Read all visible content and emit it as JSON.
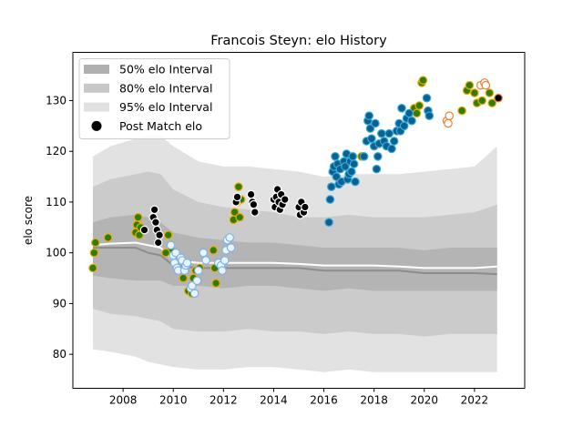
{
  "chart_data": {
    "type": "scatter",
    "title": "Francois Steyn: elo History",
    "xlabel": "",
    "ylabel": "elo score",
    "xlim": [
      2006.0,
      2024.0
    ],
    "ylim": [
      73.3,
      139.5
    ],
    "x_ticks": [
      2008,
      2010,
      2012,
      2014,
      2016,
      2018,
      2020,
      2022
    ],
    "y_ticks": [
      80,
      90,
      100,
      110,
      120,
      130
    ],
    "grid": false,
    "legend_position": "top-left",
    "legend": [
      {
        "label": "50% elo Interval",
        "kind": "patch",
        "color": "#b0b0b0"
      },
      {
        "label": "80% elo Interval",
        "kind": "patch",
        "color": "#c8c8c8"
      },
      {
        "label": "95% elo Interval",
        "kind": "patch",
        "color": "#e1e1e1"
      },
      {
        "label": "Post Match elo",
        "kind": "marker",
        "color": "#000000"
      }
    ],
    "colors": {
      "band95": "#e2e2e2",
      "band80": "#cbcbcb",
      "band50": "#b4b4b4",
      "mean_line": "#ffffff",
      "median_line": "#8c8c8c"
    },
    "bands": {
      "x": [
        2006.8,
        2007.5,
        2008.5,
        2009.0,
        2009.5,
        2010.0,
        2011.0,
        2012.0,
        2013.0,
        2014.0,
        2015.0,
        2016.0,
        2017.0,
        2018.0,
        2019.0,
        2020.0,
        2021.0,
        2022.0,
        2022.9
      ],
      "p95_hi": [
        119.0,
        121.0,
        122.5,
        123.0,
        123.0,
        121.0,
        118.0,
        117.0,
        117.0,
        116.5,
        116.0,
        115.0,
        115.5,
        115.5,
        115.5,
        116.0,
        116.5,
        117.0,
        121.0
      ],
      "p80_hi": [
        113.0,
        114.5,
        115.5,
        116.0,
        115.5,
        112.5,
        110.0,
        109.0,
        108.5,
        108.0,
        107.0,
        107.0,
        107.5,
        107.0,
        107.0,
        107.0,
        107.5,
        108.0,
        109.5
      ],
      "p50_hi": [
        106.0,
        107.0,
        107.5,
        107.0,
        106.0,
        104.0,
        103.0,
        102.5,
        102.0,
        102.0,
        101.5,
        101.0,
        101.0,
        101.0,
        101.0,
        100.5,
        101.0,
        101.0,
        101.0
      ],
      "p50_lo": [
        95.5,
        95.0,
        94.5,
        94.5,
        94.5,
        93.5,
        93.5,
        93.0,
        93.5,
        93.5,
        93.0,
        92.5,
        93.0,
        92.5,
        92.5,
        92.5,
        92.5,
        92.5,
        92.5
      ],
      "p80_lo": [
        89.0,
        88.0,
        87.5,
        87.0,
        86.5,
        85.0,
        84.5,
        84.5,
        85.0,
        84.5,
        84.5,
        84.0,
        84.5,
        84.0,
        84.0,
        83.5,
        84.0,
        84.0,
        84.0
      ],
      "p95_lo": [
        81.0,
        80.5,
        79.5,
        78.5,
        78.0,
        77.5,
        77.0,
        77.0,
        77.5,
        77.5,
        77.0,
        76.5,
        77.0,
        76.5,
        76.5,
        76.5,
        76.5,
        76.5,
        76.5
      ]
    },
    "mean_line": {
      "x": [
        2006.8,
        2007.5,
        2008.5,
        2009.0,
        2009.5,
        2010.0,
        2011.0,
        2012.0,
        2013.0,
        2014.0,
        2015.0,
        2016.0,
        2017.0,
        2018.0,
        2019.0,
        2020.0,
        2021.0,
        2022.0,
        2022.9
      ],
      "y": [
        101.5,
        101.8,
        102.0,
        101.5,
        101.0,
        98.5,
        98.0,
        98.0,
        98.0,
        98.0,
        97.8,
        97.5,
        97.5,
        97.5,
        97.3,
        97.0,
        97.0,
        97.0,
        97.3
      ]
    },
    "median_line": {
      "x": [
        2006.8,
        2007.5,
        2008.5,
        2009.0,
        2009.5,
        2010.0,
        2011.0,
        2012.0,
        2013.0,
        2014.0,
        2015.0,
        2016.0,
        2017.0,
        2018.0,
        2019.0,
        2020.0,
        2021.0,
        2022.0,
        2022.9
      ],
      "y": [
        101.0,
        101.0,
        101.0,
        100.0,
        99.5,
        97.5,
        97.0,
        97.0,
        97.0,
        97.0,
        97.0,
        96.5,
        96.5,
        96.5,
        96.5,
        96.0,
        96.0,
        96.0,
        95.8
      ]
    },
    "series": [
      {
        "face": "#2e7d0a",
        "edge": "#f2a900",
        "points": [
          [
            2006.8,
            97.0
          ],
          [
            2006.85,
            100.0
          ],
          [
            2006.9,
            102.0
          ],
          [
            2007.4,
            103.0
          ],
          [
            2008.5,
            104.0
          ],
          [
            2008.55,
            105.5
          ],
          [
            2008.6,
            107.0
          ],
          [
            2008.65,
            103.5
          ],
          [
            2008.7,
            105.0
          ],
          [
            2009.8,
            103.5
          ],
          [
            2009.9,
            100.5
          ],
          [
            2009.7,
            100.0
          ],
          [
            2010.4,
            95.0
          ],
          [
            2010.6,
            92.5
          ],
          [
            2010.75,
            92.0
          ],
          [
            2010.8,
            95.0
          ],
          [
            2010.9,
            96.5
          ],
          [
            2011.05,
            97.0
          ],
          [
            2011.6,
            100.5
          ],
          [
            2011.7,
            94.0
          ],
          [
            2011.65,
            97.0
          ],
          [
            2012.4,
            106.5
          ],
          [
            2012.45,
            108.0
          ],
          [
            2012.55,
            110.0
          ],
          [
            2012.6,
            113.0
          ],
          [
            2012.65,
            107.0
          ],
          [
            2012.7,
            110.5
          ],
          [
            2017.5,
            119.0
          ],
          [
            2019.6,
            128.5
          ],
          [
            2019.7,
            127.5
          ],
          [
            2019.8,
            129.0
          ],
          [
            2019.9,
            133.5
          ],
          [
            2019.95,
            134.0
          ],
          [
            2021.5,
            128.0
          ],
          [
            2021.7,
            132.0
          ],
          [
            2021.8,
            133.0
          ],
          [
            2022.0,
            131.5
          ],
          [
            2022.1,
            129.5
          ],
          [
            2022.3,
            130.0
          ],
          [
            2022.6,
            131.5
          ],
          [
            2022.7,
            129.5
          ]
        ]
      },
      {
        "face": "#000000",
        "edge": "#ffffff",
        "points": [
          [
            2008.85,
            104.5
          ],
          [
            2009.25,
            108.5
          ],
          [
            2009.2,
            107.0
          ],
          [
            2009.3,
            106.0
          ],
          [
            2009.35,
            104.5
          ],
          [
            2009.4,
            102.0
          ],
          [
            2009.45,
            103.5
          ],
          [
            2012.5,
            110.0
          ],
          [
            2012.55,
            111.0
          ],
          [
            2013.1,
            111.5
          ],
          [
            2013.15,
            110.0
          ],
          [
            2013.2,
            109.5
          ],
          [
            2013.25,
            108.0
          ],
          [
            2014.0,
            110.5
          ],
          [
            2014.05,
            109.0
          ],
          [
            2014.1,
            111.0
          ],
          [
            2014.15,
            112.5
          ],
          [
            2014.2,
            110.0
          ],
          [
            2014.25,
            108.5
          ],
          [
            2014.3,
            111.5
          ],
          [
            2014.35,
            109.5
          ],
          [
            2014.45,
            110.5
          ],
          [
            2015.0,
            109.0
          ],
          [
            2015.05,
            107.5
          ],
          [
            2015.1,
            110.0
          ],
          [
            2015.2,
            108.0
          ],
          [
            2015.25,
            109.0
          ]
        ]
      },
      {
        "face": "#e8f4ff",
        "edge": "#7fb3e6",
        "points": [
          [
            2009.9,
            101.5
          ],
          [
            2010.0,
            99.5
          ],
          [
            2010.05,
            98.0
          ],
          [
            2010.1,
            100.0
          ],
          [
            2010.15,
            97.0
          ],
          [
            2010.2,
            96.5
          ],
          [
            2010.3,
            99.0
          ],
          [
            2010.35,
            98.5
          ],
          [
            2010.45,
            96.5
          ],
          [
            2010.5,
            97.5
          ],
          [
            2010.55,
            98.0
          ],
          [
            2010.7,
            93.0
          ],
          [
            2010.75,
            93.5
          ],
          [
            2010.85,
            92.0
          ],
          [
            2010.95,
            94.5
          ],
          [
            2011.0,
            96.5
          ],
          [
            2011.2,
            100.0
          ],
          [
            2011.3,
            98.5
          ],
          [
            2011.8,
            98.0
          ],
          [
            2011.9,
            97.5
          ],
          [
            2011.95,
            96.5
          ],
          [
            2012.05,
            98.5
          ],
          [
            2012.1,
            100.5
          ],
          [
            2012.15,
            102.5
          ],
          [
            2012.25,
            103.0
          ],
          [
            2012.3,
            101.0
          ]
        ]
      },
      {
        "face": "#0d5f8c",
        "edge": "#33aadd",
        "points": [
          [
            2016.2,
            106.0
          ],
          [
            2016.25,
            110.5
          ],
          [
            2016.3,
            113.0
          ],
          [
            2016.35,
            116.0
          ],
          [
            2016.4,
            117.0
          ],
          [
            2016.45,
            119.0
          ],
          [
            2016.5,
            115.0
          ],
          [
            2016.55,
            117.5
          ],
          [
            2016.6,
            113.5
          ],
          [
            2016.65,
            116.5
          ],
          [
            2016.7,
            114.0
          ],
          [
            2016.8,
            118.0
          ],
          [
            2016.85,
            117.0
          ],
          [
            2016.9,
            119.5
          ],
          [
            2016.95,
            114.5
          ],
          [
            2017.0,
            115.5
          ],
          [
            2017.05,
            118.0
          ],
          [
            2017.1,
            116.0
          ],
          [
            2017.15,
            119.0
          ],
          [
            2017.2,
            117.5
          ],
          [
            2017.25,
            114.0
          ],
          [
            2017.6,
            119.0
          ],
          [
            2017.7,
            122.0
          ],
          [
            2017.75,
            126.0
          ],
          [
            2017.8,
            127.0
          ],
          [
            2017.85,
            124.5
          ],
          [
            2017.9,
            122.5
          ],
          [
            2018.0,
            121.0
          ],
          [
            2018.05,
            125.5
          ],
          [
            2018.1,
            116.5
          ],
          [
            2018.15,
            119.0
          ],
          [
            2018.2,
            121.5
          ],
          [
            2018.3,
            123.5
          ],
          [
            2018.4,
            122.0
          ],
          [
            2018.5,
            121.0
          ],
          [
            2018.6,
            123.5
          ],
          [
            2018.7,
            120.5
          ],
          [
            2018.8,
            122.0
          ],
          [
            2018.9,
            124.0
          ],
          [
            2019.0,
            125.5
          ],
          [
            2019.05,
            124.0
          ],
          [
            2019.1,
            128.5
          ],
          [
            2019.2,
            125.0
          ],
          [
            2019.3,
            126.5
          ],
          [
            2019.4,
            127.5
          ],
          [
            2019.5,
            126.0
          ],
          [
            2020.1,
            130.5
          ],
          [
            2020.15,
            128.0
          ],
          [
            2020.2,
            127.0
          ]
        ]
      },
      {
        "face": "#ffffff",
        "edge": "#f08030",
        "points": [
          [
            2020.9,
            126.0
          ],
          [
            2021.0,
            127.0
          ],
          [
            2020.95,
            125.5
          ],
          [
            2022.25,
            133.0
          ],
          [
            2022.4,
            133.5
          ],
          [
            2022.45,
            133.0
          ]
        ]
      },
      {
        "face": "#000000",
        "edge": "#f08030",
        "points": [
          [
            2022.95,
            130.5
          ]
        ]
      }
    ]
  }
}
